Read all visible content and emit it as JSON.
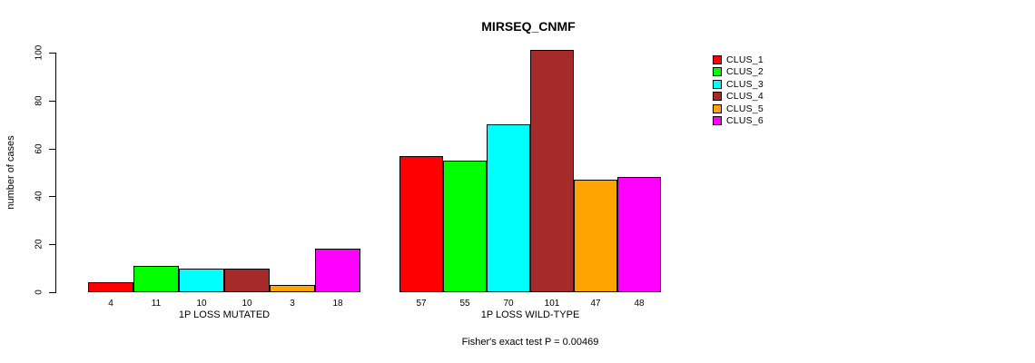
{
  "title": "MIRSEQ_CNMF",
  "footnote": "Fisher's exact test P = 0.00469",
  "chart_data": {
    "type": "bar",
    "title": "MIRSEQ_CNMF",
    "xlabel": "",
    "ylabel": "number of cases",
    "ylim": [
      0,
      100
    ],
    "yticks": [
      0,
      20,
      40,
      60,
      80,
      100
    ],
    "grid": false,
    "legend_position": "right",
    "bar_value_labels": true,
    "categories": [
      "1P LOSS MUTATED",
      "1P LOSS WILD-TYPE"
    ],
    "series": [
      {
        "name": "CLUS_1",
        "color": "#FF0000",
        "values": [
          4,
          57
        ]
      },
      {
        "name": "CLUS_2",
        "color": "#00FF00",
        "values": [
          11,
          55
        ]
      },
      {
        "name": "CLUS_3",
        "color": "#00FFFF",
        "values": [
          10,
          70
        ]
      },
      {
        "name": "CLUS_4",
        "color": "#A52A2A",
        "values": [
          10,
          101
        ]
      },
      {
        "name": "CLUS_5",
        "color": "#FFA500",
        "values": [
          3,
          47
        ]
      },
      {
        "name": "CLUS_6",
        "color": "#FF00FF",
        "values": [
          18,
          48
        ]
      }
    ],
    "annotation": "Fisher's exact test P = 0.00469"
  }
}
